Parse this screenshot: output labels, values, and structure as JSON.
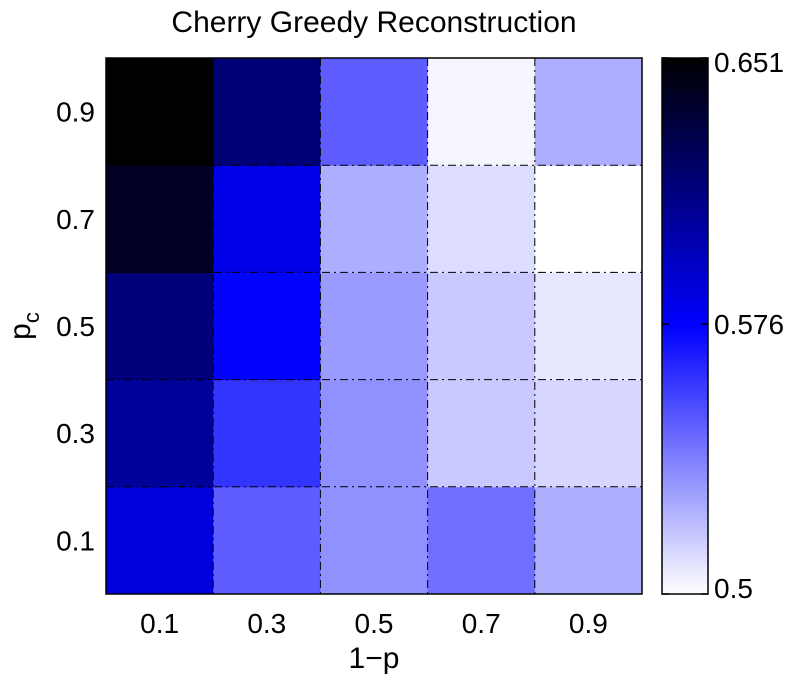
{
  "chart_data": {
    "type": "heatmap",
    "title": "Cherry Greedy Reconstruction",
    "xlabel": "1−p",
    "ylabel_base": "p",
    "ylabel_subscript": "c",
    "x_categories": [
      "0.1",
      "0.3",
      "0.5",
      "0.7",
      "0.9"
    ],
    "y_categories": [
      "0.1",
      "0.3",
      "0.5",
      "0.7",
      "0.9"
    ],
    "colorbar": {
      "min": 0.5,
      "max": 0.651,
      "tick_values": [
        0.5,
        0.576,
        0.651
      ],
      "tick_labels": [
        "0.5",
        "0.576",
        "0.651"
      ],
      "colors": {
        "low": "#ffffff",
        "mid": "#0000ff",
        "high": "#000000"
      }
    },
    "values_by_row": {
      "0.9": [
        0.651,
        0.616,
        0.548,
        0.503,
        0.524
      ],
      "0.7": [
        0.64,
        0.582,
        0.524,
        0.51,
        0.5
      ],
      "0.5": [
        0.615,
        0.575,
        0.53,
        0.516,
        0.507
      ],
      "0.3": [
        0.605,
        0.56,
        0.533,
        0.516,
        0.512
      ],
      "0.1": [
        0.585,
        0.548,
        0.533,
        0.543,
        0.524
      ]
    }
  }
}
